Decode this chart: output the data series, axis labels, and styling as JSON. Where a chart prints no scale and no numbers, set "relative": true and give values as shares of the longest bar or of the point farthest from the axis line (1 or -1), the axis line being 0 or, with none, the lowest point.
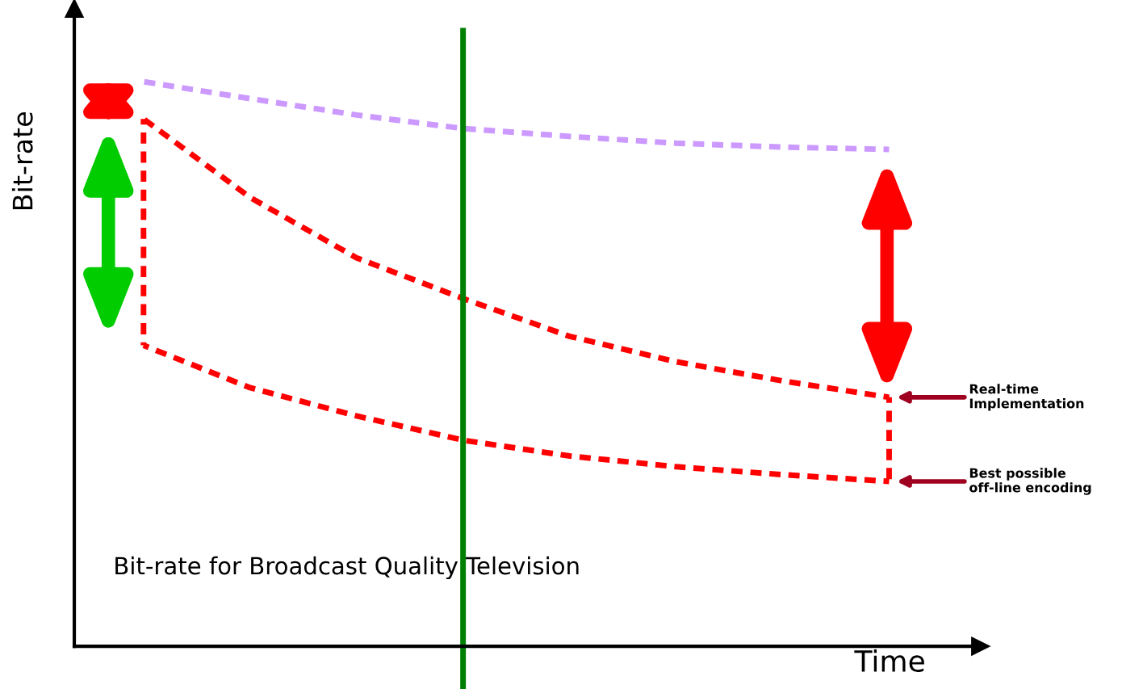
{
  "chart_data": {
    "type": "line",
    "relative": true,
    "xlabel": "Time",
    "ylabel": "Bit-rate",
    "categories": [
      null,
      null,
      null,
      null,
      null,
      null,
      null,
      null
    ],
    "marker": "none",
    "line_style": "dashed",
    "series": [
      {
        "color": "#cc99ff",
        "values": [
          1.0,
          0.97,
          0.941,
          0.917,
          0.903,
          0.891,
          0.884,
          0.88
        ]
      },
      {
        "color": "#ff0000",
        "values": [
          0.934,
          0.795,
          0.688,
          0.616,
          0.549,
          0.504,
          0.47,
          0.441
        ]
      },
      {
        "color": "#ff0000",
        "values": [
          0.533,
          0.458,
          0.408,
          0.365,
          0.337,
          0.318,
          0.304,
          0.292
        ]
      }
    ],
    "annotations": [
      "Bit-rate for Broadcast Quality Television",
      "Real-time\nImplementation",
      "Best possible\noff-line encoding"
    ]
  }
}
